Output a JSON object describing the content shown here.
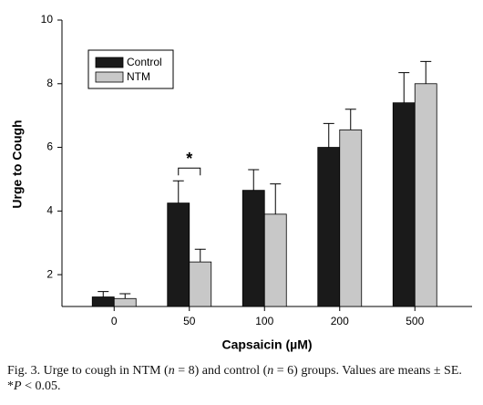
{
  "chart_data": {
    "type": "bar",
    "y_label": "Urge to Cough",
    "x_label": "Capsaicin (µM)",
    "categories": [
      "0",
      "50",
      "100",
      "200",
      "500"
    ],
    "series": [
      {
        "name": "Control",
        "color": "#1a1a1a",
        "values": [
          1.3,
          4.25,
          4.65,
          6.0,
          7.4
        ],
        "errors": [
          0.17,
          0.7,
          0.65,
          0.75,
          0.95
        ]
      },
      {
        "name": "NTM",
        "color": "#c8c8c8",
        "values": [
          1.25,
          2.4,
          3.9,
          6.55,
          8.0
        ],
        "errors": [
          0.15,
          0.4,
          0.95,
          0.65,
          0.7
        ]
      }
    ],
    "ylim": [
      1,
      10
    ],
    "yticks": [
      2,
      4,
      6,
      8,
      10
    ],
    "legend": "upper left",
    "annotations": [
      {
        "text": "*",
        "category": 1
      }
    ]
  },
  "caption": [
    {
      "text": "Fig. 3. Urge to cough in NTM ("
    },
    {
      "text": "n",
      "italic": true
    },
    {
      "text": " = 8) and control ("
    },
    {
      "text": "n",
      "italic": true
    },
    {
      "text": " = 6) groups. Values are means ± SE. *"
    },
    {
      "text": "P",
      "italic": true
    },
    {
      "text": " < 0.05."
    }
  ]
}
